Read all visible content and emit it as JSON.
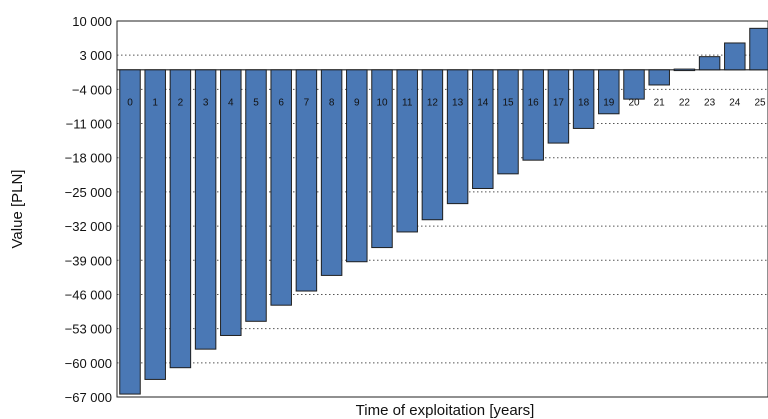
{
  "chart_data": {
    "type": "bar",
    "xlabel": "Time of exploitation [years]",
    "ylabel": "Value [PLN]",
    "categories": [
      "0",
      "1",
      "2",
      "3",
      "4",
      "5",
      "6",
      "7",
      "8",
      "9",
      "10",
      "11",
      "12",
      "13",
      "14",
      "15",
      "16",
      "17",
      "18",
      "19",
      "20",
      "21",
      "22",
      "23",
      "24",
      "25"
    ],
    "values": [
      -66400,
      -63400,
      -61000,
      -57200,
      -54400,
      -51500,
      -48200,
      -45300,
      -42100,
      -39300,
      -36400,
      -33200,
      -30700,
      -27400,
      -24300,
      -21300,
      -18500,
      -15000,
      -12000,
      -9000,
      -6000,
      -3100,
      -200,
      2700,
      5500,
      8500
    ],
    "yticks": [
      10000,
      3000,
      -4000,
      -11000,
      -18000,
      -25000,
      -32000,
      -39000,
      -46000,
      -53000,
      -60000,
      -67000
    ],
    "ytick_labels": [
      "10 000",
      "3 000",
      "−4 000",
      "−11 000",
      "−18 000",
      "−25 000",
      "−32 000",
      "−39 000",
      "−46 000",
      "−53 000",
      "−60 000",
      "−67 000"
    ],
    "ylim": [
      -67000,
      10000
    ],
    "grid": true,
    "colors": {
      "bar": "#4a78b5",
      "edge": "#1f1f1f"
    }
  }
}
